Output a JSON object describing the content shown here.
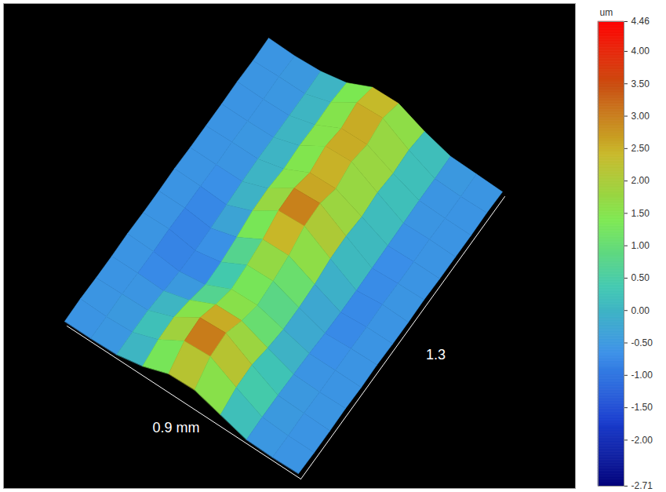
{
  "chart_data": {
    "type": "surface",
    "x_label": "0.9 mm",
    "y_label": "1.3",
    "xlim": [
      0,
      0.9
    ],
    "ylim": [
      0,
      1.3
    ],
    "x": [
      0,
      0.1,
      0.2,
      0.3,
      0.4,
      0.5,
      0.6,
      0.7,
      0.8,
      0.9
    ],
    "y": [
      0,
      0.1,
      0.2,
      0.3,
      0.4,
      0.5,
      0.6,
      0.7,
      0.8,
      0.9,
      1.0,
      1.1,
      1.2,
      1.3
    ],
    "z": [
      [
        -0.6,
        -0.6,
        -0.5,
        0.2,
        1.4,
        1.5,
        0.5,
        -0.5,
        -0.6,
        -0.5
      ],
      [
        -0.5,
        -0.6,
        -0.4,
        0.8,
        2.8,
        3.0,
        1.2,
        -0.4,
        -0.6,
        -0.6
      ],
      [
        -0.6,
        -0.5,
        -0.4,
        0.9,
        3.0,
        3.2,
        1.3,
        -0.4,
        -0.5,
        -0.6
      ],
      [
        -0.6,
        -0.6,
        -0.7,
        0.3,
        1.9,
        2.0,
        0.7,
        -0.5,
        -0.6,
        -0.5
      ],
      [
        -0.5,
        -0.6,
        -1.0,
        -0.5,
        1.1,
        1.2,
        0.3,
        -0.6,
        -0.6,
        -0.6
      ],
      [
        -0.6,
        -0.5,
        -1.1,
        -0.4,
        1.4,
        1.5,
        0.3,
        -0.8,
        -0.6,
        -0.5
      ],
      [
        -0.6,
        -0.6,
        -1.0,
        0.0,
        1.9,
        2.0,
        0.5,
        -0.9,
        -0.6,
        -0.6
      ],
      [
        -0.5,
        -0.6,
        -0.8,
        0.6,
        2.8,
        3.0,
        1.0,
        -0.9,
        -0.5,
        -0.6
      ],
      [
        -0.6,
        -0.6,
        -0.6,
        0.7,
        2.9,
        3.1,
        1.1,
        -0.8,
        -0.6,
        -0.5
      ],
      [
        -0.6,
        -0.5,
        -0.5,
        0.4,
        2.1,
        2.2,
        0.8,
        -0.7,
        -0.6,
        -0.6
      ],
      [
        -0.6,
        -0.6,
        -0.5,
        0.6,
        2.7,
        2.9,
        1.1,
        -0.6,
        -0.5,
        -0.6
      ],
      [
        -0.5,
        -0.6,
        -0.5,
        0.5,
        2.2,
        2.3,
        0.8,
        -0.5,
        -0.6,
        -0.6
      ],
      [
        -0.6,
        -0.5,
        -0.5,
        0.6,
        2.7,
        2.9,
        1.0,
        -0.5,
        -0.6,
        -0.5
      ],
      [
        -0.5,
        -0.6,
        -0.4,
        0.3,
        1.9,
        2.0,
        0.6,
        -0.4,
        -0.5,
        -0.6
      ]
    ],
    "colorbar": {
      "label": "um",
      "range": [
        -2.71,
        4.46
      ],
      "ticks": [
        4.46,
        {
          "value": 4,
          "label": "4.00"
        },
        {
          "value": 3.5,
          "label": "3.50"
        },
        {
          "value": 3,
          "label": "3.00"
        },
        {
          "value": 2.5,
          "label": "2.50"
        },
        {
          "value": 2,
          "label": "2.00"
        },
        {
          "value": 1.5,
          "label": "1.50"
        },
        {
          "value": 1,
          "label": "1.00"
        },
        {
          "value": 0.5,
          "label": "0.50"
        },
        {
          "value": 0,
          "label": "0.00"
        },
        {
          "value": -0.5,
          "label": "-0.50"
        },
        {
          "value": -1,
          "label": "-1.00"
        },
        {
          "value": -1.5,
          "label": "-1.50"
        },
        {
          "value": -2,
          "label": "-2.00"
        },
        -2.71
      ]
    }
  }
}
